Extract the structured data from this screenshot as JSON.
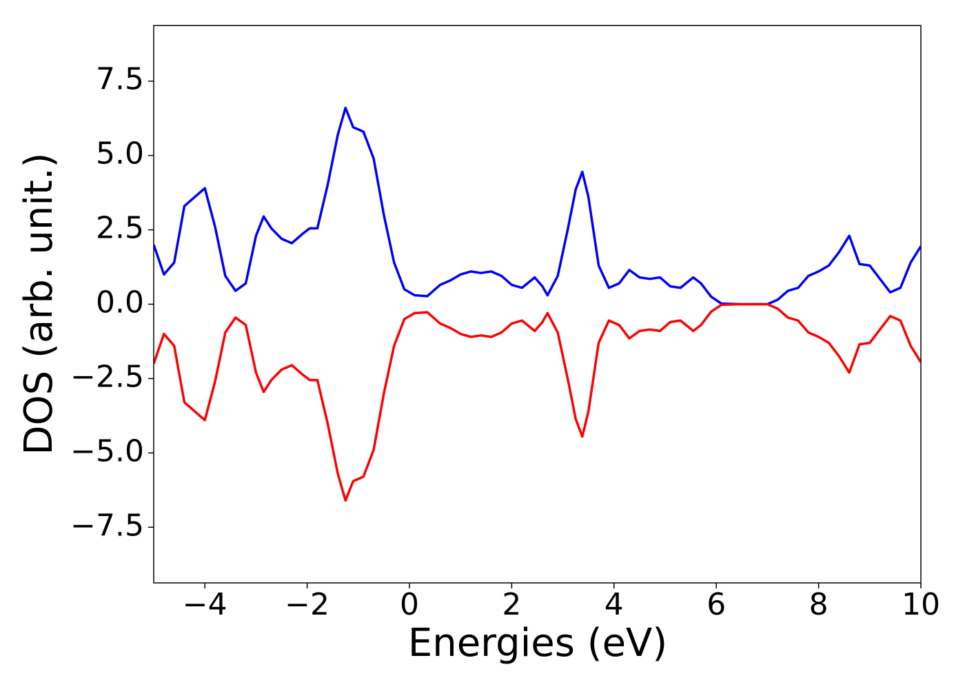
{
  "chart_data": {
    "type": "line",
    "xlabel": "Energies (eV)",
    "ylabel": "DOS (arb. unit.)",
    "x": [
      -5,
      -4.8,
      -4.6,
      -4.4,
      -4.2,
      -4.0,
      -3.8,
      -3.6,
      -3.4,
      -3.2,
      -3.0,
      -2.85,
      -2.7,
      -2.5,
      -2.3,
      -2.1,
      -1.95,
      -1.8,
      -1.6,
      -1.4,
      -1.25,
      -1.1,
      -0.9,
      -0.7,
      -0.5,
      -0.3,
      -0.1,
      0.1,
      0.35,
      0.6,
      0.8,
      1.0,
      1.2,
      1.4,
      1.6,
      1.8,
      2.0,
      2.2,
      2.45,
      2.6,
      2.7,
      2.9,
      3.1,
      3.25,
      3.38,
      3.5,
      3.7,
      3.9,
      4.1,
      4.3,
      4.5,
      4.7,
      4.9,
      5.1,
      5.3,
      5.55,
      5.7,
      5.9,
      6.1,
      6.5,
      7.0,
      7.2,
      7.4,
      7.6,
      7.8,
      8.0,
      8.2,
      8.4,
      8.6,
      8.8,
      9.0,
      9.2,
      9.4,
      9.6,
      9.8,
      10
    ],
    "series": [
      {
        "color": "#0000ff",
        "values": [
          2.0,
          1.0,
          1.4,
          3.3,
          3.6,
          3.9,
          2.6,
          0.95,
          0.45,
          0.7,
          2.3,
          2.95,
          2.55,
          2.2,
          2.05,
          2.35,
          2.55,
          2.55,
          4.0,
          5.7,
          6.6,
          5.95,
          5.8,
          4.9,
          3.0,
          1.4,
          0.5,
          0.3,
          0.27,
          0.65,
          0.8,
          1.0,
          1.1,
          1.05,
          1.1,
          0.95,
          0.65,
          0.55,
          0.9,
          0.6,
          0.3,
          0.95,
          2.55,
          3.85,
          4.45,
          3.6,
          1.3,
          0.55,
          0.7,
          1.15,
          0.9,
          0.85,
          0.9,
          0.6,
          0.55,
          0.9,
          0.7,
          0.25,
          0.02,
          0,
          0,
          0.15,
          0.45,
          0.55,
          0.95,
          1.1,
          1.3,
          1.75,
          2.3,
          1.35,
          1.3,
          0.85,
          0.4,
          0.55,
          1.4,
          1.95
        ]
      },
      {
        "color": "#ff0000",
        "values": [
          -2.0,
          -1.0,
          -1.4,
          -3.3,
          -3.6,
          -3.9,
          -2.6,
          -0.95,
          -0.45,
          -0.7,
          -2.3,
          -2.95,
          -2.55,
          -2.2,
          -2.05,
          -2.35,
          -2.55,
          -2.55,
          -4.0,
          -5.7,
          -6.6,
          -5.95,
          -5.8,
          -4.9,
          -3.0,
          -1.4,
          -0.5,
          -0.3,
          -0.27,
          -0.65,
          -0.8,
          -1.0,
          -1.1,
          -1.05,
          -1.1,
          -0.95,
          -0.65,
          -0.55,
          -0.9,
          -0.6,
          -0.3,
          -0.95,
          -2.55,
          -3.85,
          -4.45,
          -3.6,
          -1.3,
          -0.55,
          -0.7,
          -1.15,
          -0.9,
          -0.85,
          -0.9,
          -0.6,
          -0.55,
          -0.9,
          -0.7,
          -0.25,
          -0.02,
          0,
          0,
          -0.15,
          -0.45,
          -0.55,
          -0.95,
          -1.1,
          -1.3,
          -1.75,
          -2.3,
          -1.35,
          -1.3,
          -0.85,
          -0.4,
          -0.55,
          -1.4,
          -1.95
        ]
      }
    ],
    "xlim": [
      -5,
      10
    ],
    "xticks": [
      {
        "value": -4,
        "label": "−4"
      },
      {
        "value": -2,
        "label": "−2"
      },
      0,
      2,
      4,
      6,
      8,
      10
    ],
    "ylim": [
      -9.37,
      9.37
    ],
    "yticks": [
      {
        "value": -7.5,
        "label": "−7.5"
      },
      {
        "value": -5,
        "label": "−5.0"
      },
      {
        "value": -2.5,
        "label": "−2.5"
      },
      {
        "value": 0,
        "label": "0.0"
      },
      {
        "value": 2.5,
        "label": "2.5"
      },
      {
        "value": 5,
        "label": "5.0"
      },
      {
        "value": 7.5,
        "label": "7.5"
      }
    ],
    "grid": false
  }
}
